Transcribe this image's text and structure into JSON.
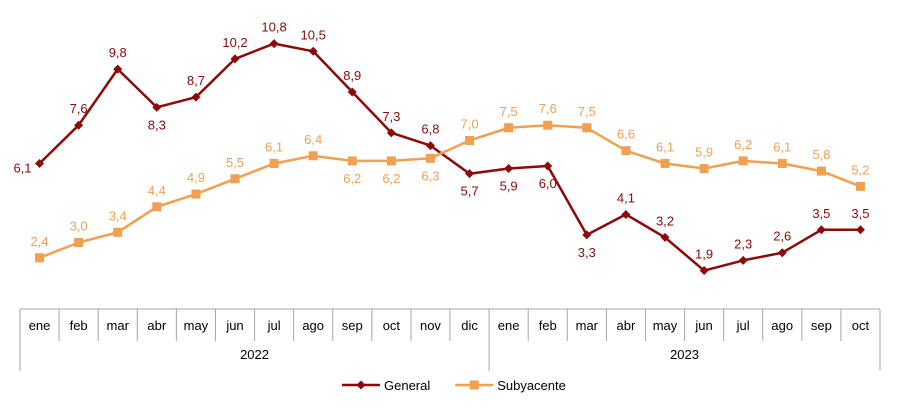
{
  "chart_data": {
    "type": "line",
    "title": "",
    "xlabel": "",
    "ylabel": "",
    "ylim": [
      0,
      12
    ],
    "grid": false,
    "legend_position": "bottom",
    "categories": [
      "ene",
      "feb",
      "mar",
      "abr",
      "may",
      "jun",
      "jul",
      "ago",
      "sep",
      "oct",
      "nov",
      "dic",
      "ene",
      "feb",
      "mar",
      "abr",
      "may",
      "jun",
      "jul",
      "ago",
      "sep",
      "oct"
    ],
    "groups": [
      {
        "label": "2022",
        "count": 12
      },
      {
        "label": "2023",
        "count": 10
      }
    ],
    "series": [
      {
        "name": "General",
        "color": "#8B0A0A",
        "marker": "diamond",
        "values": [
          6.1,
          7.6,
          9.8,
          8.3,
          8.7,
          10.2,
          10.8,
          10.5,
          8.9,
          7.3,
          6.8,
          5.7,
          5.9,
          6.0,
          3.3,
          4.1,
          3.2,
          1.9,
          2.3,
          2.6,
          3.5,
          3.5
        ],
        "labels": [
          "6,1",
          "7,6",
          "9,8",
          "8,3",
          "8,7",
          "10,2",
          "10,8",
          "10,5",
          "8,9",
          "7,3",
          "6,8",
          "5,7",
          "5,9",
          "6,0",
          "3,3",
          "4,1",
          "3,2",
          "1,9",
          "2,3",
          "2,6",
          "3,5",
          "3,5"
        ],
        "label_pos": [
          "left",
          "above",
          "above",
          "below",
          "above",
          "above",
          "above",
          "above",
          "above",
          "above",
          "above",
          "below",
          "below",
          "below",
          "below",
          "above",
          "above",
          "above",
          "above",
          "above",
          "above",
          "above"
        ]
      },
      {
        "name": "Subyacente",
        "color": "#F0A050",
        "marker": "square",
        "values": [
          2.4,
          3.0,
          3.4,
          4.4,
          4.9,
          5.5,
          6.1,
          6.4,
          6.2,
          6.2,
          6.3,
          7.0,
          7.5,
          7.6,
          7.5,
          6.6,
          6.1,
          5.9,
          6.2,
          6.1,
          5.8,
          5.2
        ],
        "labels": [
          "2,4",
          "3,0",
          "3,4",
          "4,4",
          "4,9",
          "5,5",
          "6,1",
          "6,4",
          "6,2",
          "6,2",
          "6,3",
          "7,0",
          "7,5",
          "7,6",
          "7,5",
          "6,6",
          "6,1",
          "5,9",
          "6,2",
          "6,1",
          "5,8",
          "5,2"
        ],
        "label_pos": [
          "above",
          "above",
          "above",
          "above",
          "above",
          "above",
          "above",
          "above",
          "below",
          "below",
          "below",
          "above",
          "above",
          "above",
          "above",
          "above",
          "above",
          "above",
          "above",
          "above",
          "above",
          "above"
        ]
      }
    ]
  }
}
